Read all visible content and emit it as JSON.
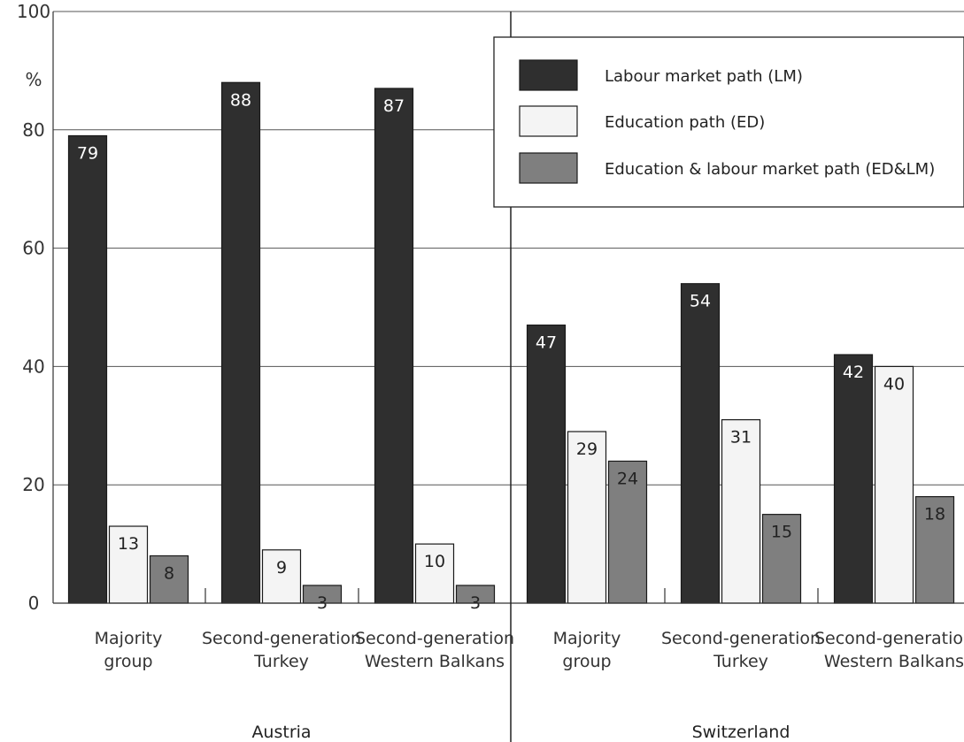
{
  "chart_data": {
    "type": "bar",
    "ylabel": "%",
    "ylim": [
      0,
      100
    ],
    "yticks": [
      0,
      20,
      40,
      60,
      80,
      100
    ],
    "grid": true,
    "legend_position": "top-right",
    "groups": [
      {
        "name": "Austria",
        "categories": [
          "Majority group",
          "Second-generation Turkey",
          "Second-generation Western Balkans"
        ],
        "category_lines": [
          [
            "Majority",
            "group"
          ],
          [
            "Second-generation",
            "Turkey"
          ],
          [
            "Second-generation",
            "Western Balkans"
          ]
        ]
      },
      {
        "name": "Switzerland",
        "categories": [
          "Majority group",
          "Second-generation Turkey",
          "Second-generation Western Balkans"
        ],
        "category_lines": [
          [
            "Majority",
            "group"
          ],
          [
            "Second-generation",
            "Turkey"
          ],
          [
            "Second-generation",
            "Western Balkans"
          ]
        ]
      }
    ],
    "series": [
      {
        "name": "Labour market path (LM)",
        "color": "#2f2f2f",
        "label_color": "#ffffff",
        "values": [
          79,
          88,
          87,
          47,
          54,
          42
        ]
      },
      {
        "name": "Education path (ED)",
        "color": "#f4f4f4",
        "label_color": "#222222",
        "values": [
          13,
          9,
          10,
          29,
          31,
          40
        ]
      },
      {
        "name": "Education & labour market path (ED&LM)",
        "color": "#7f7f7f",
        "label_color": "#222222",
        "values": [
          8,
          3,
          3,
          24,
          15,
          18
        ]
      }
    ]
  }
}
